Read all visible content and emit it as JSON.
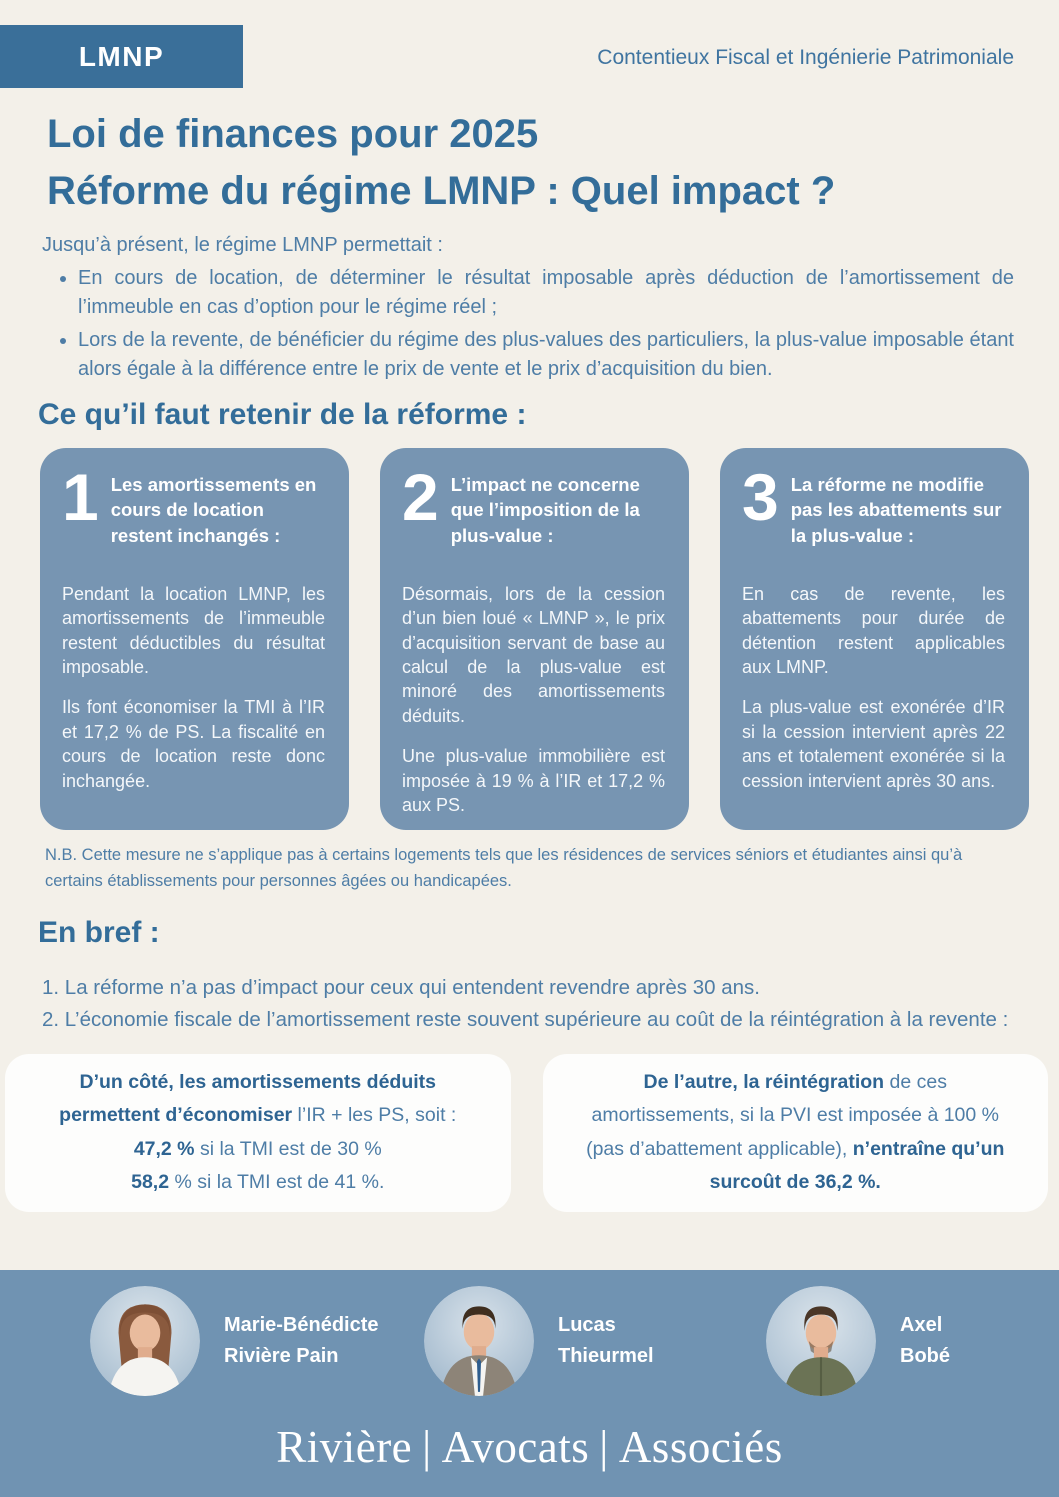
{
  "colors": {
    "page_bg": "#f3f0e9",
    "badge_bg": "#3a6f99",
    "heading_blue": "#336d99",
    "body_blue": "#4e7da6",
    "card_bg": "#7795b2",
    "card_text": "#ffffff",
    "footer_bg": "#7093b2",
    "white_card_bg": "#fdfdfc",
    "bold_blue": "#2e6492"
  },
  "header": {
    "badge_label": "LMNP",
    "tagline": "Contentieux Fiscal et Ingénierie Patrimoniale"
  },
  "title": {
    "line1": "Loi de finances pour 2025",
    "line2": "Réforme du régime LMNP : Quel impact ?"
  },
  "intro": {
    "lead": "Jusqu’à présent, le régime LMNP permettait :",
    "bullets": [
      "En cours de location, de déterminer le résultat imposable après déduction de l’amortissement de l’immeuble en cas d’option pour le régime réel ;",
      "Lors de la revente, de bénéficier du régime des plus-values des particuliers, la plus-value imposable étant alors égale à la différence entre le prix de vente et le prix d’acquisition du bien."
    ]
  },
  "key_points": {
    "heading": "Ce qu’il faut retenir de la réforme :",
    "cards": [
      {
        "number": "1",
        "title": "Les amortissements en cours de location restent inchangés :",
        "paragraphs": [
          "Pendant la location LMNP, les amortissements de l’immeuble restent déductibles du résultat imposable.",
          "Ils font économiser la TMI à l’IR et 17,2 % de PS. La fiscalité en cours de location reste donc inchangée."
        ]
      },
      {
        "number": "2",
        "title": "L’impact ne concerne que l’imposition de la plus-value :",
        "paragraphs": [
          "Désormais, lors de la cession d’un bien loué « LMNP », le prix d’acquisition servant de base au calcul de la plus-value est minoré des amortissements déduits.",
          "Une plus-value immobilière est imposée à 19 % à l’IR et 17,2 % aux PS."
        ]
      },
      {
        "number": "3",
        "title": "La réforme ne modifie pas les abattements sur la plus-value :",
        "paragraphs": [
          "En cas de revente, les abattements pour durée de détention restent applicables aux LMNP.",
          "La plus-value est exonérée d’IR si la cession intervient après 22 ans et totalement exonérée si la cession intervient après 30 ans."
        ]
      }
    ],
    "note": "N.B. Cette mesure ne s’applique pas à certains logements tels que les résidences de services séniors et étudiantes ainsi qu’à certains établissements pour personnes âgées ou handicapées."
  },
  "summary": {
    "heading": "En bref :",
    "items": [
      "1. La réforme n’a pas d’impact pour ceux qui entendent revendre après 30 ans.",
      "2. L’économie fiscale de l’amortissement reste souvent supérieure au coût de la réintégration à la revente :"
    ],
    "left_card": {
      "line1": [
        {
          "text": "D’un côté, les amortissements déduits permettent d’économiser",
          "bold": true
        },
        {
          "text": " l’IR + les PS, soit :",
          "bold": false
        }
      ],
      "line2": [
        {
          "text": "47,2 %",
          "bold": true
        },
        {
          "text": " si la TMI est de 30 %",
          "bold": false
        }
      ],
      "line3": [
        {
          "text": "58,2",
          "bold": true
        },
        {
          "text": " % si la TMI est de 41 %.",
          "bold": false
        }
      ]
    },
    "right_card": {
      "text": [
        {
          "text": "De l’autre, la réintégration",
          "bold": true
        },
        {
          "text": " de ces amortissements, si la PVI est imposée à 100 % (pas d’abattement applicable), ",
          "bold": false
        },
        {
          "text": "n’entraîne qu’un surcoût de 36,2 %.",
          "bold": true
        }
      ]
    }
  },
  "footer": {
    "people": [
      {
        "line1": "Marie-Bénédicte",
        "line2": "Rivière Pain"
      },
      {
        "line1": "Lucas",
        "line2": "Thieurmel"
      },
      {
        "line1": "Axel",
        "line2": "Bobé"
      }
    ],
    "logo_parts": [
      "Rivière",
      "Avocats",
      "Associés"
    ],
    "logo_separator": "|"
  }
}
